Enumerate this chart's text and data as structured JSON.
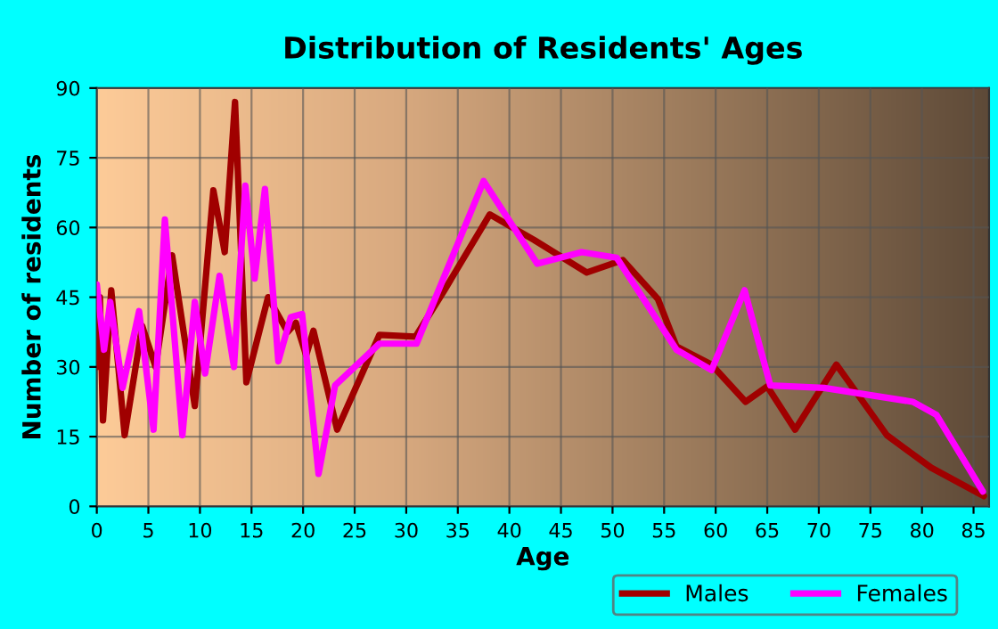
{
  "chart_data": {
    "type": "line",
    "title": "Distribution of Residents' Ages",
    "xlabel": "Age",
    "ylabel": "Number of residents",
    "xlim": [
      0,
      86.5
    ],
    "xticks": [
      0,
      5,
      10,
      15,
      20,
      25,
      30,
      35,
      40,
      45,
      50,
      55,
      60,
      65,
      70,
      75,
      80,
      85
    ],
    "ylim": [
      0,
      90
    ],
    "yticks": [
      0,
      15,
      30,
      45,
      60,
      75,
      90
    ],
    "grid": true,
    "legend": "bottom right",
    "series": [
      {
        "name": "Males",
        "color": "#a00000",
        "x": [
          0,
          0.3,
          0.6,
          1.4,
          2.7,
          4.4,
          5.7,
          7.3,
          9.5,
          11.3,
          12.4,
          13.4,
          14.5,
          16.6,
          18.5,
          19.3,
          20.3,
          21,
          23.3,
          27.4,
          30.9,
          33.7,
          38.1,
          42.4,
          47.5,
          51,
          54.4,
          56.2,
          59.6,
          62.9,
          65,
          67.7,
          71.7,
          76.6,
          80.9,
          86
        ],
        "values": [
          30,
          45,
          18.5,
          46.5,
          15.3,
          38.8,
          30,
          54,
          21.6,
          68,
          54.7,
          87,
          26.7,
          45,
          37.5,
          39.5,
          32.5,
          37.8,
          16.5,
          36.9,
          36.5,
          46.5,
          62.8,
          57.3,
          50.3,
          53,
          44.6,
          34.4,
          30.5,
          22.5,
          25.8,
          16.5,
          30.5,
          15.3,
          8.3,
          2.2
        ]
      },
      {
        "name": "Females",
        "color": "#ff00ff",
        "x": [
          0,
          0.7,
          1.3,
          2.5,
          4.1,
          5.5,
          6.6,
          8.3,
          9.5,
          10.5,
          11.9,
          13.3,
          14.4,
          15.3,
          16.3,
          17.6,
          18.8,
          19.9,
          21.5,
          23.1,
          27.4,
          31,
          37.5,
          42.7,
          47,
          50.4,
          56.2,
          59.6,
          62.8,
          65.3,
          70.5,
          79.1,
          81.4,
          85.9
        ],
        "values": [
          47.7,
          33.7,
          44,
          25.5,
          42,
          16.5,
          61.7,
          15.3,
          44,
          28.6,
          49.6,
          30,
          69,
          49,
          68.3,
          31.2,
          40.7,
          41.4,
          7,
          26,
          35,
          35,
          70,
          52.2,
          54.7,
          53.5,
          33.7,
          29.3,
          46.5,
          26,
          25.5,
          22.5,
          19.7,
          3.2
        ]
      }
    ]
  }
}
